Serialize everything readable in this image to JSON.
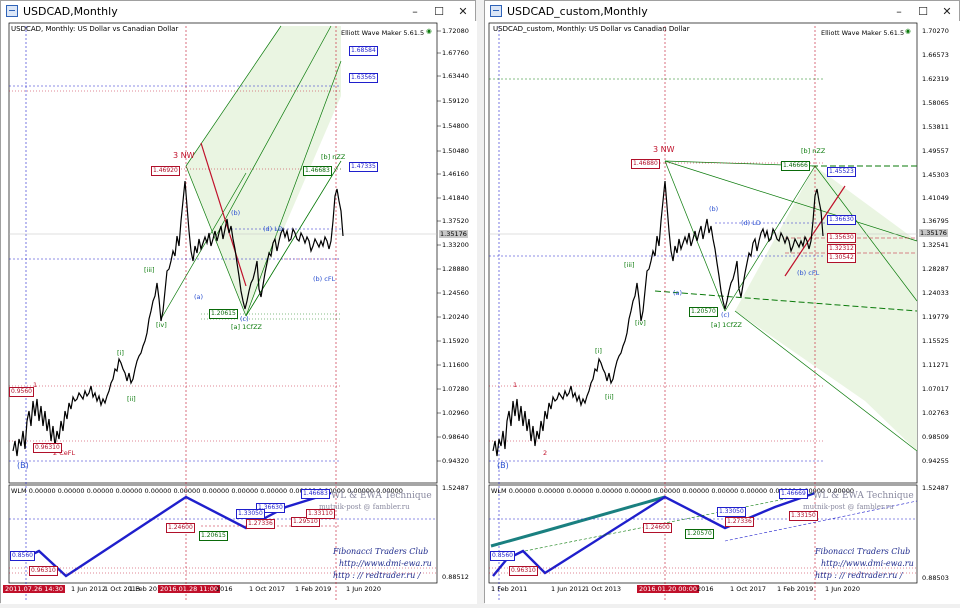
{
  "left": {
    "window_title": "USDCAD,Monthly",
    "header": "USDCAD, Monthly:  US Dollar vs Canadian Dollar",
    "ewm": "Elliott Wave Maker 5.61.5",
    "price_axis": [
      "1.72080",
      "1.67760",
      "1.63440",
      "1.59120",
      "1.54800",
      "1.50480",
      "1.46160",
      "1.41840",
      "1.37520",
      "1.33200",
      "1.28880",
      "1.24560",
      "1.20240",
      "1.15920",
      "1.11600",
      "1.07280",
      "1.02960",
      "0.98640",
      "0.94320"
    ],
    "current_price": "1.35176",
    "indicator_axis": [
      "1.52487",
      "0.88512"
    ],
    "indicator_header": "WLM  0.00000  0.00000  0.00000  0.00000  0.00000  0.00000  0.00000  0.00000  0.00000  0.00000  0.00000  0.00000  0.00000",
    "dates": [
      "2011.07.26 14:30",
      "1 Jun 2012",
      "1 Oct 2013",
      "1 Feb 2015",
      "2016.01.28 11:00",
      "2016",
      "1 Oct 2017",
      "1 Feb 2019",
      "1 Jun 2020"
    ],
    "blue_labels": [
      "1.68584",
      "1.63565",
      "1.47335",
      "1.36630"
    ],
    "green_labels": [
      "1.46683",
      "1.20615"
    ],
    "red_labels": [
      "1.46920",
      "0.96310",
      "0.9560"
    ],
    "ind_blue": [
      "1.46683",
      "1.36630",
      "1.33050"
    ],
    "ind_red": [
      "1.24600",
      "1.27336",
      "1.29510",
      "1.33110"
    ],
    "ind_green": [
      "1.20615"
    ],
    "ind_left": [
      "0.8560",
      "0.96310"
    ],
    "waves": {
      "w3nw": "3 NW",
      "w1": "1",
      "w2cefl": "2 CeFL",
      "wB": "(B)",
      "wiii": "[iii]",
      "wiv": "[iv]",
      "wi": "[i]",
      "wii": "[ii]",
      "wa": "(a)",
      "wb": "(b)",
      "wc": "(c)",
      "wacfzz": "[a] 1CfZZ",
      "wdld": "(d) LD",
      "wbnzz": "[b] nZZ",
      "wbcfl": "(b) cFL"
    }
  },
  "right": {
    "window_title": "USDCAD_custom,Monthly",
    "header": "USDCAD_custom, Monthly:  US Dollar vs Canadian Dollar",
    "ewm": "Elliott Wave Maker 5.61.5",
    "price_axis": [
      "1.70270",
      "1.66573",
      "1.62319",
      "1.58065",
      "1.53811",
      "1.49557",
      "1.45303",
      "1.41049",
      "1.36795",
      "1.32541",
      "1.28287",
      "1.24033",
      "1.19779",
      "1.15525",
      "1.11271",
      "1.07017",
      "1.02763",
      "0.98509",
      "0.94255"
    ],
    "current_price": "1.35176",
    "indicator_axis": [
      "1.52487",
      "0.88503"
    ],
    "indicator_header": "WLM  0.00000  0.00000  0.00000  0.00000  0.00000  0.00000  0.00000  0.00000  0.00000  0.00000  0.00000  0.00000",
    "dates": [
      "1 Feb 2011",
      "1 Jun 2012",
      "1 Oct 2013",
      "2016.01.20 00:00",
      "2016",
      "1 Oct 2017",
      "1 Feb 2019",
      "1 Jun 2020"
    ],
    "blue_labels": [
      "1.45523",
      "1.36630"
    ],
    "green_labels": [
      "1.46666",
      "1.20570"
    ],
    "red_labels": [
      "1.46880",
      "1.35630",
      "1.32312",
      "1.30542"
    ],
    "ind_blue": [
      "1.46669",
      "1.33050"
    ],
    "ind_red": [
      "1.24600",
      "1.27336",
      "1.33150"
    ],
    "ind_green": [
      "1.20570"
    ],
    "ind_left": [
      "0.8560",
      "0.96310"
    ],
    "waves": {
      "w3nw": "3 NW",
      "w1": "1",
      "w2": "2",
      "wB": "(B)",
      "wiii": "[iii]",
      "wiv": "[iv]",
      "wi": "[i]",
      "wii": "[ii]",
      "wa": "(a)",
      "wb": "(b)",
      "wc": "(c)",
      "wacfzz": "[a] 1CfZZ",
      "wdld": "(d) LD",
      "wbnzz": "[b] nZZ",
      "wbcfl": "(b) cFL"
    }
  },
  "watermark": {
    "line1": "WL & EWA Technique",
    "line2": "mutnik-post @ fambler.ru",
    "club": "Fibonacci   Traders   Club",
    "site1": "http://www.dmi-ewa.ru",
    "site2": "http : // redtrader.ru /"
  },
  "colors": {
    "bullish_wave": "#1f1fcc",
    "bearish": "#c0102a",
    "green_channel": "#0a7a0a",
    "accent_teal": "#1a8080"
  }
}
